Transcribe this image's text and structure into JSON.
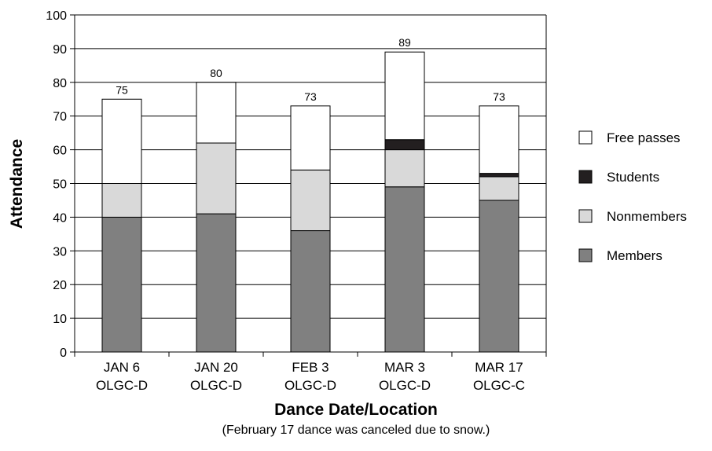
{
  "chart_data": {
    "type": "bar",
    "stacked": true,
    "categories": [
      [
        "JAN 6",
        "OLGC-D"
      ],
      [
        "JAN 20",
        "OLGC-D"
      ],
      [
        "FEB 3",
        "OLGC-D"
      ],
      [
        "MAR 3",
        "OLGC-D"
      ],
      [
        "MAR 17",
        "OLGC-C"
      ]
    ],
    "series": [
      {
        "name": "Members",
        "color": "#808080",
        "values": [
          40,
          41,
          36,
          49,
          45
        ]
      },
      {
        "name": "Nonmembers",
        "color": "#d9d9d9",
        "values": [
          10,
          21,
          18,
          11,
          7
        ]
      },
      {
        "name": "Students",
        "color": "#231f20",
        "values": [
          0,
          0,
          0,
          3,
          1
        ]
      },
      {
        "name": "Free passes",
        "color": "#ffffff",
        "values": [
          25,
          18,
          19,
          26,
          20
        ]
      }
    ],
    "totals": [
      75,
      80,
      73,
      89,
      73
    ],
    "legend_order": [
      "Free passes",
      "Students",
      "Nonmembers",
      "Members"
    ],
    "legend_position": "right",
    "xlabel": "Dance Date/Location",
    "ylabel": "Attendance",
    "note": "(February 17 dance was canceled due to snow.)",
    "ylim": [
      0,
      100
    ],
    "yticks": [
      0,
      10,
      20,
      30,
      40,
      50,
      60,
      70,
      80,
      90,
      100
    ],
    "grid": true
  }
}
